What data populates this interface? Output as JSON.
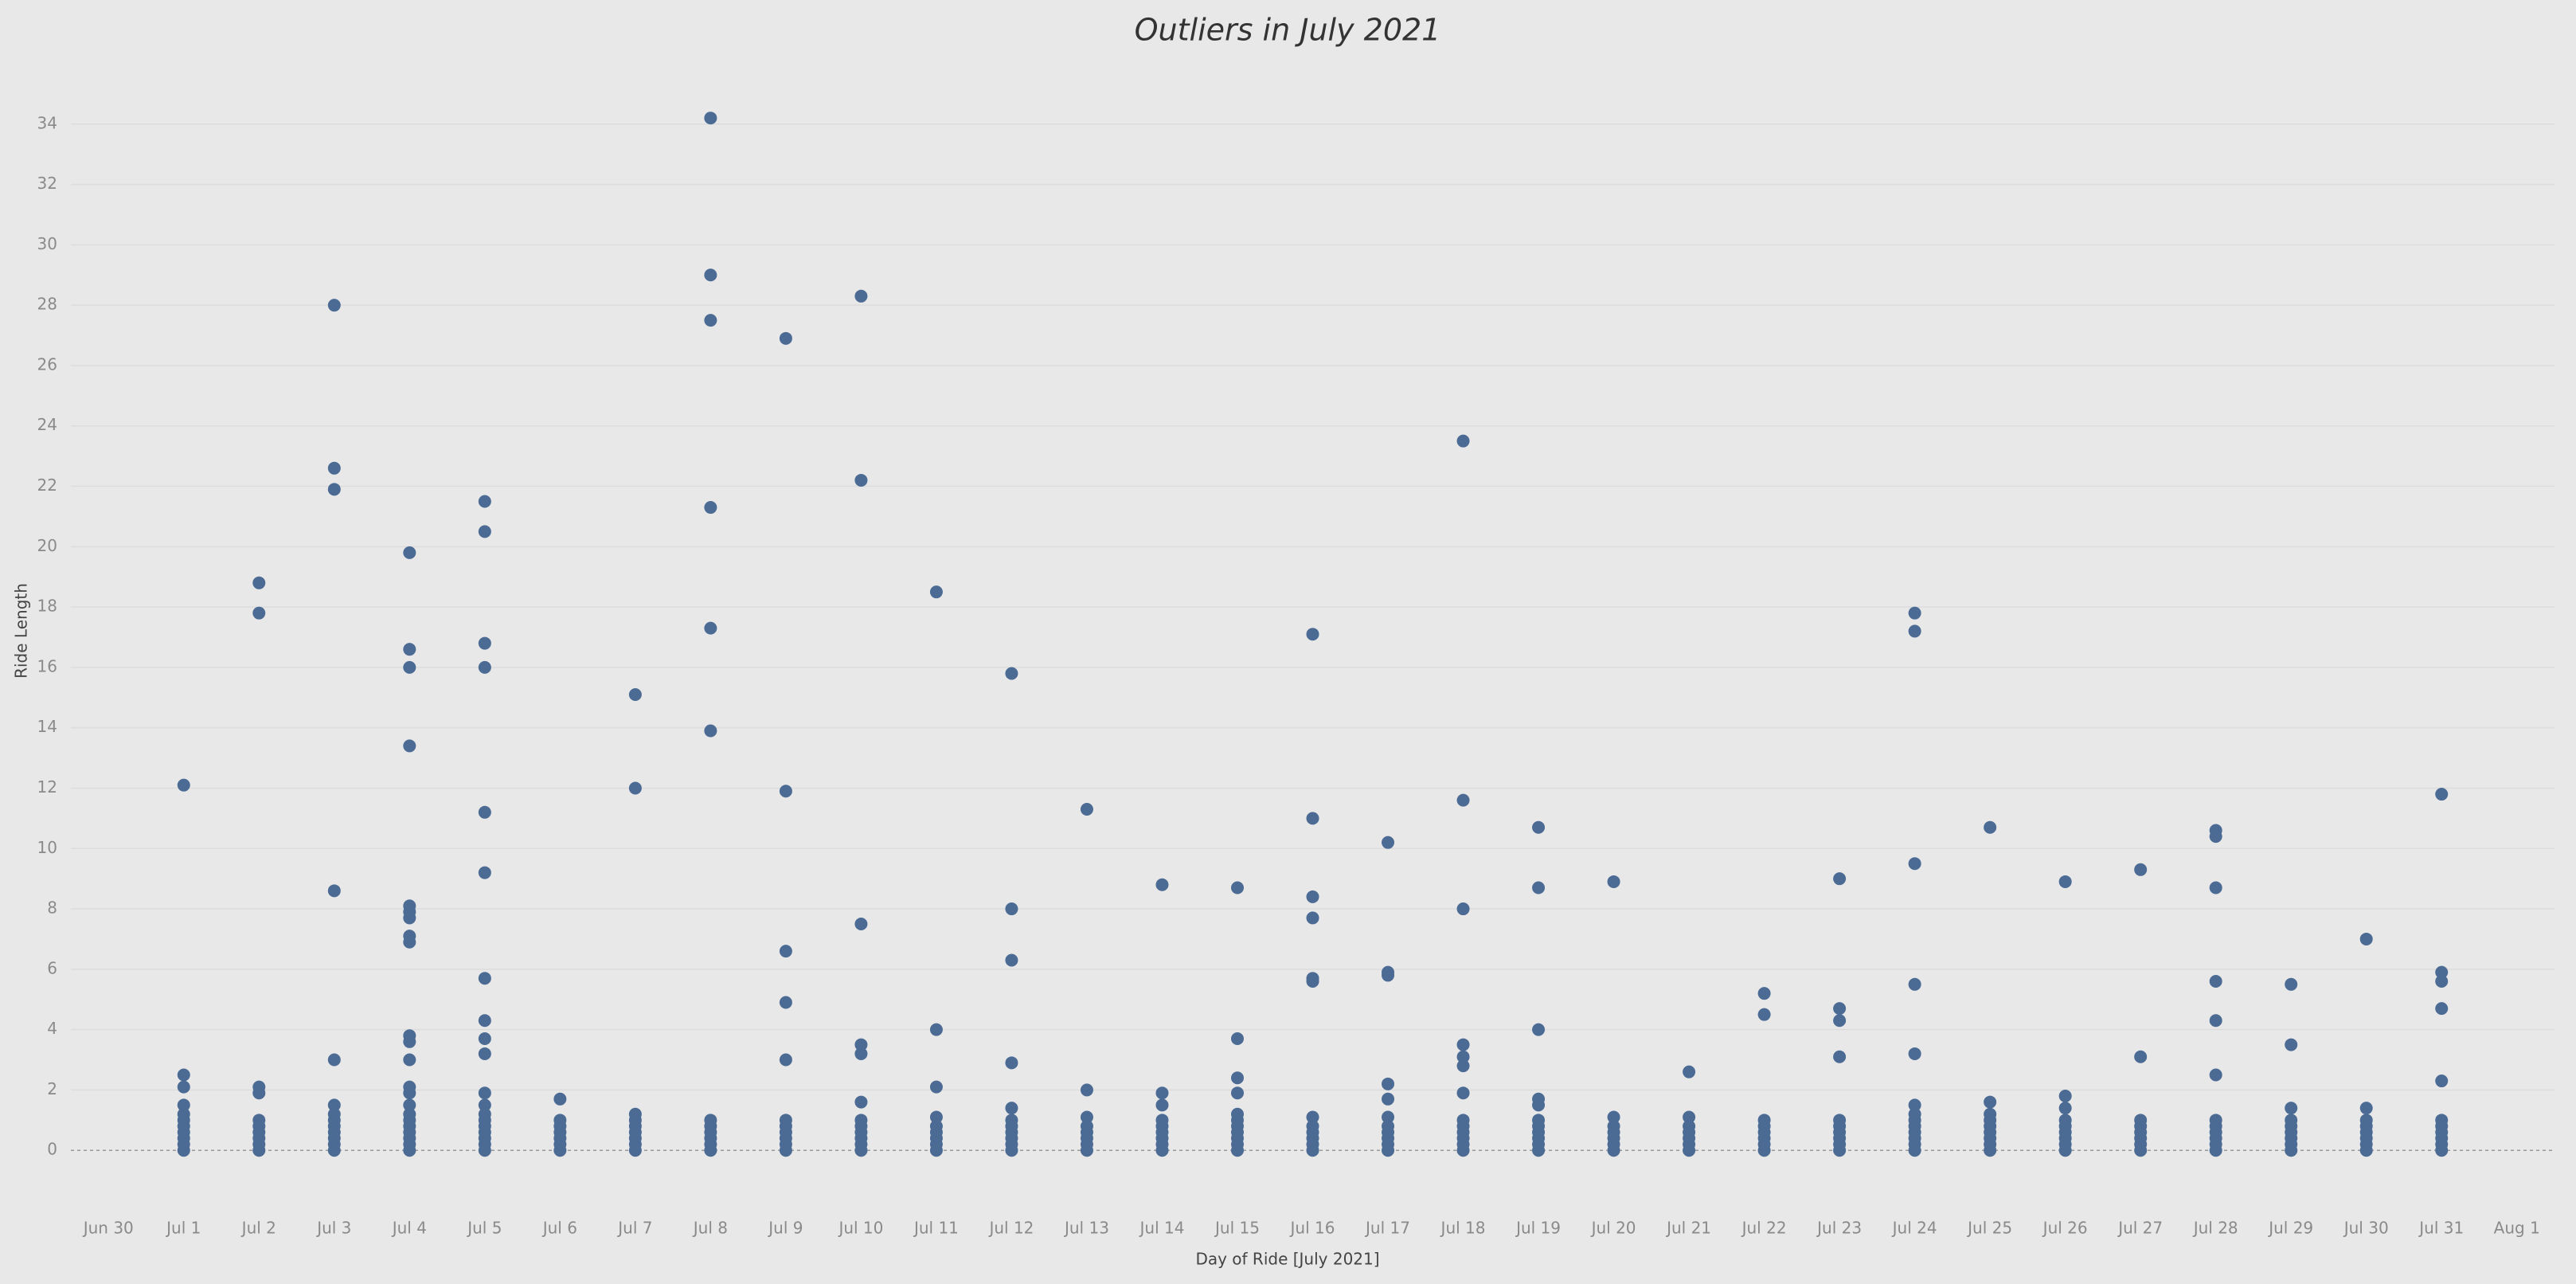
{
  "chart_data": {
    "type": "strip",
    "title": "Outliers in July 2021",
    "x_label": "Day of Ride [July 2021]",
    "y_label": "Ride Length",
    "color": "#4b6b94",
    "grid": true,
    "categories": [
      "Jun 30",
      "Jul 1",
      "Jul 2",
      "Jul 3",
      "Jul 4",
      "Jul 5",
      "Jul 6",
      "Jul 7",
      "Jul 8",
      "Jul 9",
      "Jul 10",
      "Jul 11",
      "Jul 12",
      "Jul 13",
      "Jul 14",
      "Jul 15",
      "Jul 16",
      "Jul 17",
      "Jul 18",
      "Jul 19",
      "Jul 20",
      "Jul 21",
      "Jul 22",
      "Jul 23",
      "Jul 24",
      "Jul 25",
      "Jul 26",
      "Jul 27",
      "Jul 28",
      "Jul 29",
      "Jul 30",
      "Jul 31",
      "Aug 1"
    ],
    "values": [
      [],
      [
        12.1,
        2.5,
        2.1,
        1.5,
        1.2,
        1,
        0.8,
        0.6,
        0.4,
        0.2,
        0
      ],
      [
        18.8,
        17.8,
        2.1,
        1.9,
        1,
        0.8,
        0.6,
        0.4,
        0.2,
        0
      ],
      [
        28,
        22.6,
        21.9,
        8.6,
        3,
        1.5,
        1.2,
        1,
        0.8,
        0.6,
        0.4,
        0.2,
        0
      ],
      [
        19.8,
        16.6,
        16,
        13.4,
        8.1,
        7.9,
        7.7,
        7.1,
        6.9,
        3.8,
        3.6,
        3,
        2.1,
        1.9,
        1.5,
        1.2,
        1,
        0.8,
        0.6,
        0.4,
        0.2,
        0
      ],
      [
        21.5,
        20.5,
        16.8,
        16,
        11.2,
        9.2,
        5.7,
        4.3,
        3.7,
        3.2,
        1.9,
        1.5,
        1.2,
        1,
        0.8,
        0.6,
        0.4,
        0.2,
        0
      ],
      [
        1.7,
        1,
        0.8,
        0.6,
        0.4,
        0.2,
        0
      ],
      [
        15.1,
        12,
        1.2,
        1,
        0.8,
        0.6,
        0.4,
        0.2,
        0
      ],
      [
        34.2,
        29,
        27.5,
        21.3,
        17.3,
        13.9,
        1,
        0.8,
        0.6,
        0.4,
        0.2,
        0
      ],
      [
        26.9,
        11.9,
        6.6,
        4.9,
        3,
        1,
        0.8,
        0.6,
        0.4,
        0.2,
        0
      ],
      [
        28.3,
        22.2,
        7.5,
        3.5,
        3.2,
        1.6,
        1,
        0.8,
        0.6,
        0.4,
        0.2,
        0
      ],
      [
        18.5,
        4,
        2.1,
        1.1,
        0.8,
        0.6,
        0.4,
        0.2,
        0
      ],
      [
        15.8,
        8,
        6.3,
        2.9,
        1.4,
        1,
        0.8,
        0.6,
        0.4,
        0.2,
        0
      ],
      [
        11.3,
        2,
        1.1,
        0.8,
        0.6,
        0.4,
        0.2,
        0
      ],
      [
        8.8,
        1.9,
        1.5,
        1,
        0.8,
        0.6,
        0.4,
        0.2,
        0
      ],
      [
        8.7,
        3.7,
        2.4,
        1.9,
        1.2,
        1,
        0.8,
        0.6,
        0.4,
        0.2,
        0
      ],
      [
        17.1,
        11,
        8.4,
        7.7,
        5.7,
        5.6,
        1.1,
        0.8,
        0.6,
        0.4,
        0.2,
        0
      ],
      [
        10.2,
        5.9,
        5.8,
        2.2,
        1.7,
        1.1,
        0.8,
        0.6,
        0.4,
        0.2,
        0
      ],
      [
        23.5,
        11.6,
        8,
        3.5,
        3.1,
        2.8,
        1.9,
        1,
        0.8,
        0.6,
        0.4,
        0.2,
        0
      ],
      [
        10.7,
        8.7,
        4,
        1.7,
        1.5,
        1,
        0.8,
        0.6,
        0.4,
        0.2,
        0
      ],
      [
        8.9,
        1.1,
        0.8,
        0.6,
        0.4,
        0.2,
        0
      ],
      [
        2.6,
        1.1,
        0.8,
        0.6,
        0.4,
        0.2,
        0
      ],
      [
        5.2,
        4.5,
        1,
        0.8,
        0.6,
        0.4,
        0.2,
        0
      ],
      [
        9,
        4.7,
        4.3,
        3.1,
        1,
        0.8,
        0.6,
        0.4,
        0.2,
        0
      ],
      [
        17.8,
        17.2,
        9.5,
        5.5,
        3.2,
        1.5,
        1.2,
        1,
        0.8,
        0.6,
        0.4,
        0.2,
        0
      ],
      [
        10.7,
        1.6,
        1.2,
        1,
        0.8,
        0.6,
        0.4,
        0.2,
        0
      ],
      [
        8.9,
        1.8,
        1.4,
        1,
        0.8,
        0.6,
        0.4,
        0.2,
        0
      ],
      [
        9.3,
        3.1,
        1,
        0.8,
        0.6,
        0.4,
        0.2,
        0
      ],
      [
        10.6,
        10.4,
        8.7,
        5.6,
        4.3,
        2.5,
        1,
        0.8,
        0.6,
        0.4,
        0.2,
        0
      ],
      [
        5.5,
        3.5,
        1.4,
        1,
        0.8,
        0.6,
        0.4,
        0.2,
        0
      ],
      [
        7,
        1.4,
        1,
        0.8,
        0.6,
        0.4,
        0.2,
        0
      ],
      [
        11.8,
        5.9,
        5.6,
        4.7,
        2.3,
        1,
        0.8,
        0.6,
        0.4,
        0.2,
        0
      ],
      []
    ],
    "ylim": [
      -2,
      36
    ],
    "yticks": [
      0,
      2,
      4,
      6,
      8,
      10,
      12,
      14,
      16,
      18,
      20,
      22,
      24,
      26,
      28,
      30,
      32,
      34
    ]
  }
}
